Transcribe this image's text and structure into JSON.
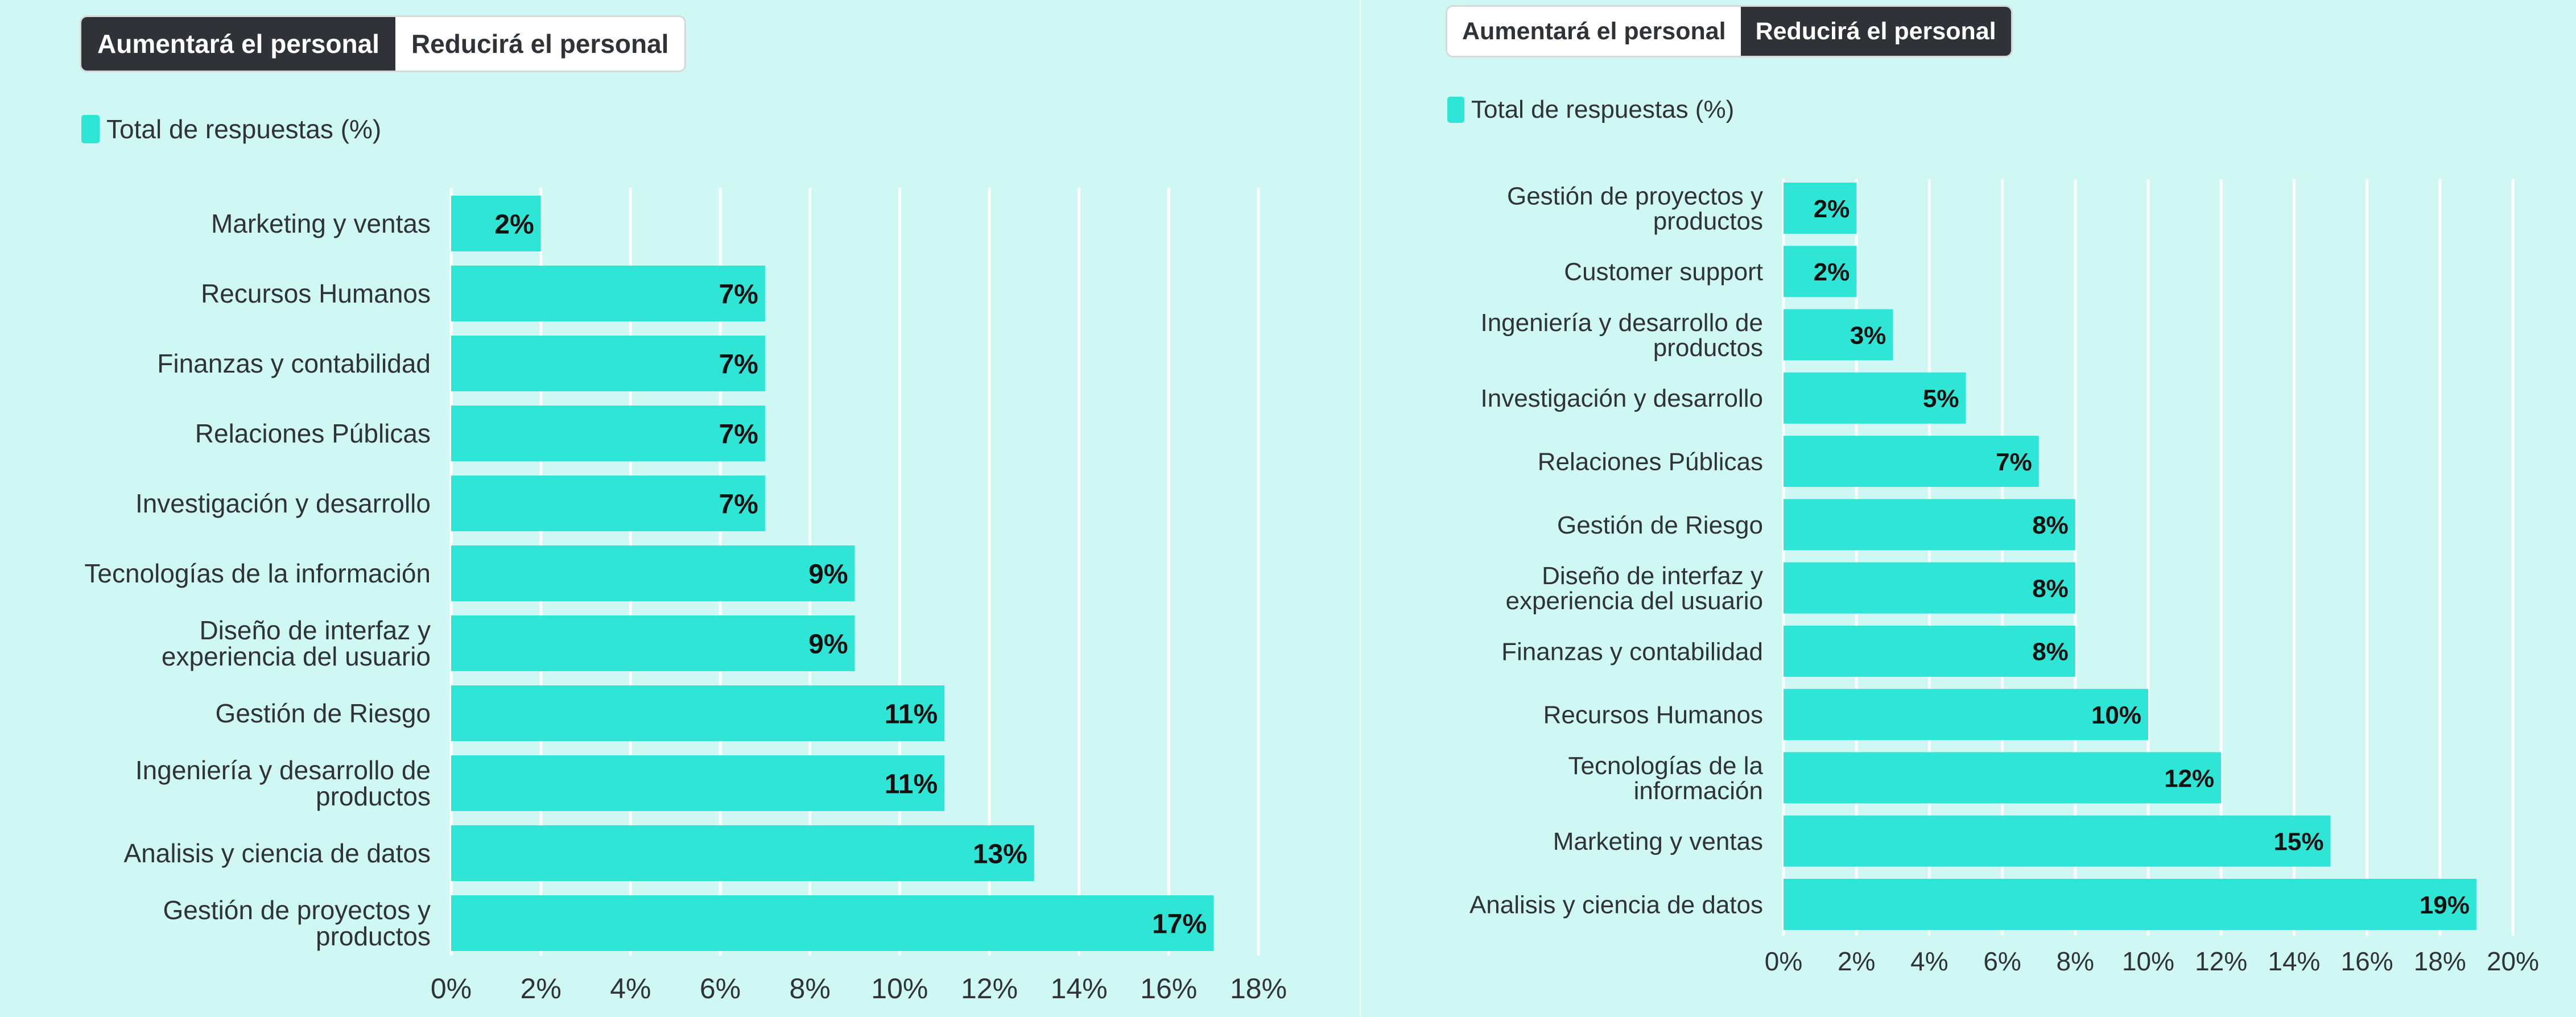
{
  "chart_data": [
    {
      "type": "bar",
      "orientation": "horizontal",
      "toggle": [
        "Aumentará el personal",
        "Reducirá el personal"
      ],
      "active_toggle": 0,
      "legend": "Total de respuestas (%)",
      "categories": [
        "Marketing y ventas",
        "Recursos Humanos",
        "Finanzas y contabilidad",
        "Relaciones Públicas",
        "Investigación y desarrollo",
        "Tecnologías de la información",
        "Diseño de interfaz y experiencia del usuario",
        "Gestión de Riesgo",
        "Ingeniería y desarrollo de productos",
        "Analisis y ciencia de datos",
        "Gestión de proyectos y productos"
      ],
      "values": [
        2,
        7,
        7,
        7,
        7,
        9,
        9,
        11,
        11,
        13,
        17
      ],
      "value_labels": [
        "2%",
        "7%",
        "7%",
        "7%",
        "7%",
        "9%",
        "9%",
        "11%",
        "11%",
        "13%",
        "17%"
      ],
      "xlim": [
        0,
        18
      ],
      "ticks": [
        "0%",
        "2%",
        "4%",
        "6%",
        "8%",
        "10%",
        "12%",
        "14%",
        "16%",
        "18%"
      ],
      "grid": true,
      "bar_color": "#2ee5d6"
    },
    {
      "type": "bar",
      "orientation": "horizontal",
      "toggle": [
        "Aumentará el personal",
        "Reducirá el personal"
      ],
      "active_toggle": 1,
      "legend": "Total de respuestas (%)",
      "categories": [
        "Gestión de proyectos y productos",
        "Customer support",
        "Ingeniería y desarrollo de productos",
        "Investigación y desarrollo",
        "Relaciones Públicas",
        "Gestión de Riesgo",
        "Diseño de interfaz y experiencia del usuario",
        "Finanzas y contabilidad",
        "Recursos Humanos",
        "Tecnologías de la información",
        "Marketing y ventas",
        "Analisis y ciencia de datos"
      ],
      "values": [
        2,
        2,
        3,
        5,
        7,
        8,
        8,
        8,
        10,
        12,
        15,
        19
      ],
      "value_labels": [
        "2%",
        "2%",
        "3%",
        "5%",
        "7%",
        "8%",
        "8%",
        "8%",
        "10%",
        "12%",
        "15%",
        "19%"
      ],
      "xlim": [
        0,
        20
      ],
      "ticks": [
        "0%",
        "2%",
        "4%",
        "6%",
        "8%",
        "10%",
        "12%",
        "14%",
        "16%",
        "18%",
        "20%"
      ],
      "grid": true,
      "bar_color": "#2ee5d6"
    }
  ]
}
